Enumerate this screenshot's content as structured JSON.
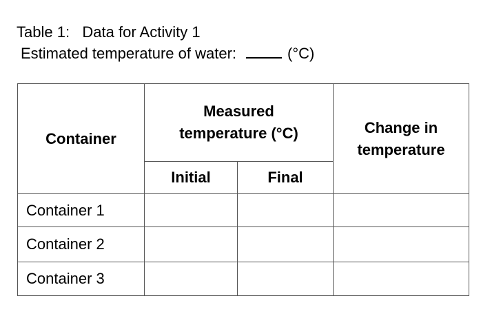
{
  "caption": {
    "title": "Table 1:   Data for Activity 1",
    "estimate_label": "Estimated temperature of water:",
    "estimate_unit": "(°C)"
  },
  "table": {
    "headers": {
      "container": "Container",
      "measured_line1": "Measured",
      "measured_line2": "temperature (°C)",
      "change_line1": "Change in",
      "change_line2": "temperature",
      "initial": "Initial",
      "final": "Final"
    },
    "rows": [
      {
        "label": "Container 1",
        "initial": "",
        "final": "",
        "change": ""
      },
      {
        "label": "Container 2",
        "initial": "",
        "final": "",
        "change": ""
      },
      {
        "label": "Container 3",
        "initial": "",
        "final": "",
        "change": ""
      }
    ]
  }
}
